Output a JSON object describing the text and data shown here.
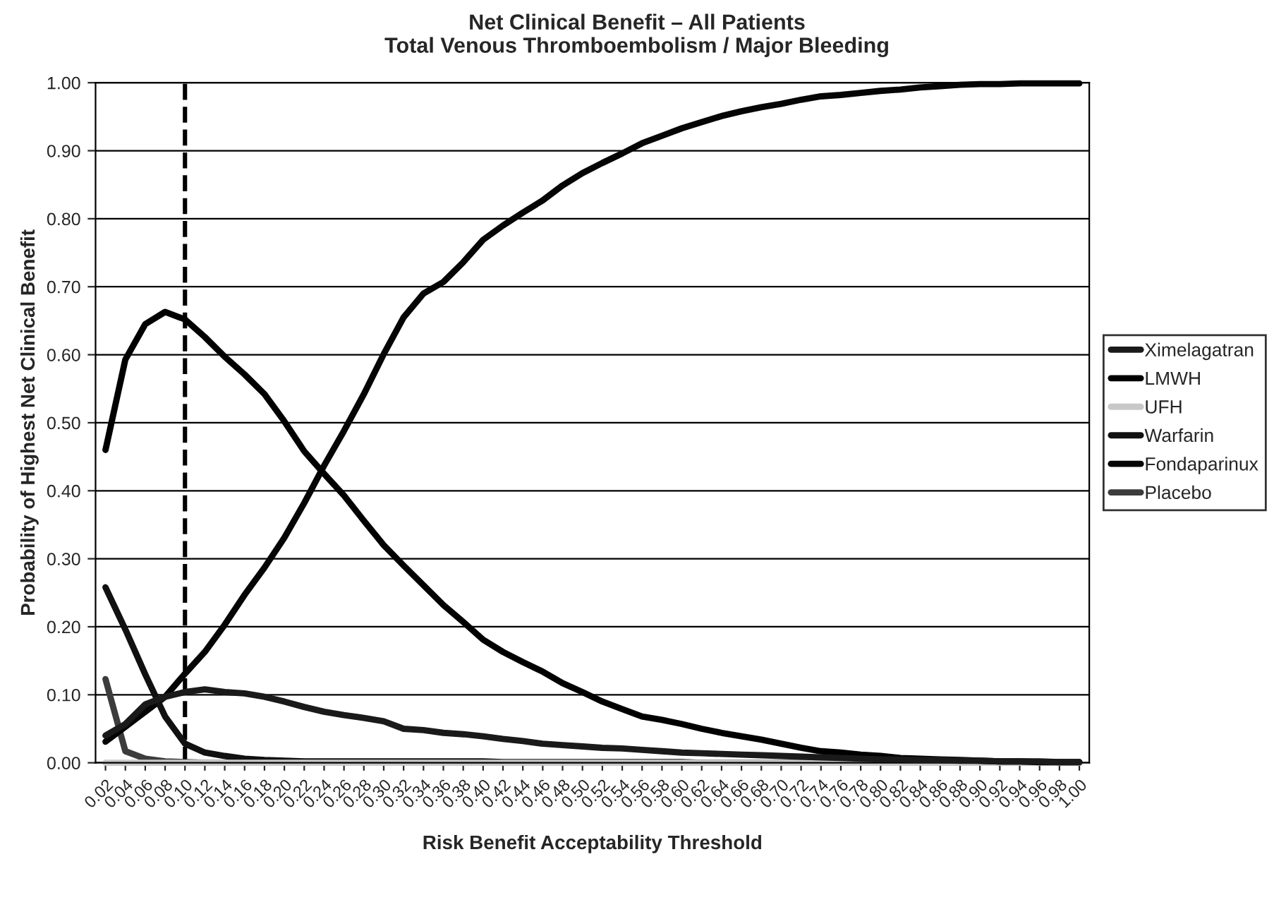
{
  "chart_data": {
    "type": "line",
    "title": "Net Clinical Benefit – All Patients\nTotal Venous Thromboembolism / Major Bleeding",
    "xlabel": "Risk Benefit Acceptability Threshold",
    "ylabel": "Probability of Highest Net Clinical Benefit",
    "x": [
      0.02,
      0.04,
      0.06,
      0.08,
      0.1,
      0.12,
      0.14,
      0.16,
      0.18,
      0.2,
      0.22,
      0.24,
      0.26,
      0.28,
      0.3,
      0.32,
      0.34,
      0.36,
      0.38,
      0.4,
      0.42,
      0.44,
      0.46,
      0.48,
      0.5,
      0.52,
      0.54,
      0.56,
      0.58,
      0.6,
      0.62,
      0.64,
      0.66,
      0.68,
      0.7,
      0.72,
      0.74,
      0.76,
      0.78,
      0.8,
      0.82,
      0.84,
      0.86,
      0.88,
      0.9,
      0.92,
      0.94,
      0.96,
      0.98,
      1.0
    ],
    "xlim": [
      0.01,
      1.01
    ],
    "xticks": [
      {
        "value": 0.02,
        "label": "0.02"
      },
      {
        "value": 0.04,
        "label": "0.04"
      },
      {
        "value": 0.06,
        "label": "0.06"
      },
      {
        "value": 0.08,
        "label": "0.08"
      },
      {
        "value": 0.1,
        "label": "0.10"
      },
      {
        "value": 0.12,
        "label": "0.12"
      },
      {
        "value": 0.14,
        "label": "0.14"
      },
      {
        "value": 0.16,
        "label": "0.16"
      },
      {
        "value": 0.18,
        "label": "0.18"
      },
      {
        "value": 0.2,
        "label": "0.20"
      },
      {
        "value": 0.22,
        "label": "0.22"
      },
      {
        "value": 0.24,
        "label": "0.24"
      },
      {
        "value": 0.26,
        "label": "0.26"
      },
      {
        "value": 0.28,
        "label": "0.28"
      },
      {
        "value": 0.3,
        "label": "0.30"
      },
      {
        "value": 0.32,
        "label": "0.32"
      },
      {
        "value": 0.34,
        "label": "0.34"
      },
      {
        "value": 0.36,
        "label": "0.36"
      },
      {
        "value": 0.38,
        "label": "0.38"
      },
      {
        "value": 0.4,
        "label": "0.40"
      },
      {
        "value": 0.42,
        "label": "0.42"
      },
      {
        "value": 0.44,
        "label": "0.44"
      },
      {
        "value": 0.46,
        "label": "0.46"
      },
      {
        "value": 0.48,
        "label": "0.48"
      },
      {
        "value": 0.5,
        "label": "0.50"
      },
      {
        "value": 0.52,
        "label": "0.52"
      },
      {
        "value": 0.54,
        "label": "0.54"
      },
      {
        "value": 0.56,
        "label": "0.56"
      },
      {
        "value": 0.58,
        "label": "0.58"
      },
      {
        "value": 0.6,
        "label": "0.60"
      },
      {
        "value": 0.62,
        "label": "0.62"
      },
      {
        "value": 0.64,
        "label": "0.64"
      },
      {
        "value": 0.66,
        "label": "0.66"
      },
      {
        "value": 0.68,
        "label": "0.68"
      },
      {
        "value": 0.7,
        "label": "0.70"
      },
      {
        "value": 0.72,
        "label": "0.72"
      },
      {
        "value": 0.74,
        "label": "0.74"
      },
      {
        "value": 0.76,
        "label": "0.76"
      },
      {
        "value": 0.78,
        "label": "0.78"
      },
      {
        "value": 0.8,
        "label": "0.80"
      },
      {
        "value": 0.82,
        "label": "0.82"
      },
      {
        "value": 0.84,
        "label": "0.84"
      },
      {
        "value": 0.86,
        "label": "0.86"
      },
      {
        "value": 0.88,
        "label": "0.88"
      },
      {
        "value": 0.9,
        "label": "0.90"
      },
      {
        "value": 0.92,
        "label": "0.92"
      },
      {
        "value": 0.94,
        "label": "0.94"
      },
      {
        "value": 0.96,
        "label": "0.96"
      },
      {
        "value": 0.98,
        "label": "0.98"
      },
      {
        "value": 1.0,
        "label": "1.00"
      }
    ],
    "ylim": [
      0,
      1
    ],
    "yticks": [
      {
        "value": 0,
        "label": "0.00"
      },
      {
        "value": 0.1,
        "label": "0.10"
      },
      {
        "value": 0.2,
        "label": "0.20"
      },
      {
        "value": 0.3,
        "label": "0.30"
      },
      {
        "value": 0.4,
        "label": "0.40"
      },
      {
        "value": 0.5,
        "label": "0.50"
      },
      {
        "value": 0.6,
        "label": "0.60"
      },
      {
        "value": 0.7,
        "label": "0.70"
      },
      {
        "value": 0.8,
        "label": "0.80"
      },
      {
        "value": 0.9,
        "label": "0.90"
      },
      {
        "value": 1,
        "label": "1.00"
      }
    ],
    "grid": "y",
    "legend": "right",
    "line_style": "solid",
    "marker": "none",
    "ref_lines": [
      {
        "axis": "x",
        "value": 0.1,
        "color": "#000000",
        "line_style": "dashed"
      }
    ],
    "series": [
      {
        "name": "Ximelagatran",
        "color": "#1a1a1a",
        "values": [
          0.04,
          0.057,
          0.086,
          0.097,
          0.104,
          0.108,
          0.104,
          0.102,
          0.097,
          0.09,
          0.082,
          0.075,
          0.07,
          0.066,
          0.061,
          0.05,
          0.048,
          0.044,
          0.042,
          0.039,
          0.035,
          0.032,
          0.028,
          0.026,
          0.024,
          0.022,
          0.021,
          0.019,
          0.017,
          0.015,
          0.014,
          0.013,
          0.012,
          0.011,
          0.01,
          0.009,
          0.008,
          0.007,
          0.006,
          0.005,
          0.005,
          0.004,
          0.004,
          0.003,
          0.003,
          0.002,
          0.002,
          0.002,
          0.001,
          0.001
        ]
      },
      {
        "name": "LMWH",
        "color": "#000000",
        "values": [
          0.46,
          0.593,
          0.645,
          0.663,
          0.652,
          0.626,
          0.597,
          0.571,
          0.542,
          0.502,
          0.458,
          0.425,
          0.393,
          0.356,
          0.32,
          0.29,
          0.261,
          0.232,
          0.207,
          0.181,
          0.163,
          0.148,
          0.134,
          0.117,
          0.104,
          0.09,
          0.079,
          0.068,
          0.063,
          0.057,
          0.05,
          0.044,
          0.039,
          0.034,
          0.028,
          0.022,
          0.017,
          0.015,
          0.012,
          0.01,
          0.007,
          0.006,
          0.005,
          0.004,
          0.003,
          0.002,
          0.002,
          0.001,
          0.001,
          0.001
        ]
      },
      {
        "name": "UFH",
        "color": "#c8c8c8",
        "values": [
          0,
          0,
          0,
          0,
          0,
          0,
          0,
          0,
          0,
          0,
          0,
          0,
          0,
          0,
          0,
          0,
          0,
          0,
          0,
          0,
          0,
          0,
          0,
          0,
          0,
          0,
          0,
          0,
          0,
          0,
          0,
          0,
          0,
          0,
          0,
          0,
          0,
          0,
          0,
          0,
          0,
          0,
          0,
          0,
          0,
          0,
          0,
          0,
          0,
          0
        ]
      },
      {
        "name": "Warfarin",
        "color": "#111111",
        "values": [
          0.258,
          0.196,
          0.13,
          0.068,
          0.028,
          0.015,
          0.01,
          0.006,
          0.004,
          0.003,
          0.002,
          0.002,
          0.002,
          0.002,
          0.002,
          0.002,
          0.002,
          0.002,
          0.002,
          0.002,
          0.001,
          0.001,
          0.001,
          0.001,
          0.001,
          0.001,
          0.001,
          0.001,
          0.001,
          0.001,
          0,
          0,
          0,
          0,
          0,
          0,
          0,
          0,
          0,
          0,
          0,
          0,
          0,
          0,
          0,
          0,
          0,
          0,
          0,
          0
        ]
      },
      {
        "name": "Fondaparinux",
        "color": "#050505",
        "values": [
          0.031,
          0.053,
          0.075,
          0.097,
          0.131,
          0.163,
          0.203,
          0.247,
          0.287,
          0.331,
          0.382,
          0.437,
          0.488,
          0.542,
          0.601,
          0.655,
          0.69,
          0.707,
          0.736,
          0.769,
          0.79,
          0.809,
          0.827,
          0.849,
          0.867,
          0.882,
          0.896,
          0.911,
          0.922,
          0.933,
          0.942,
          0.951,
          0.958,
          0.964,
          0.969,
          0.975,
          0.98,
          0.982,
          0.985,
          0.988,
          0.99,
          0.993,
          0.995,
          0.997,
          0.998,
          0.998,
          0.999,
          0.999,
          0.999,
          0.999
        ]
      },
      {
        "name": "Placebo",
        "color": "#3c3c3c",
        "values": [
          0.123,
          0.017,
          0.006,
          0.002,
          0.001,
          0,
          0,
          0,
          0,
          0,
          0,
          0,
          0,
          0,
          0,
          0,
          0,
          0,
          0,
          0,
          0,
          0,
          0,
          0,
          0,
          0,
          0,
          0,
          0,
          0,
          0,
          0,
          0,
          0,
          0,
          0,
          0,
          0,
          0,
          0,
          0,
          0,
          0,
          0,
          0,
          0,
          0,
          0,
          0,
          0
        ]
      }
    ]
  }
}
